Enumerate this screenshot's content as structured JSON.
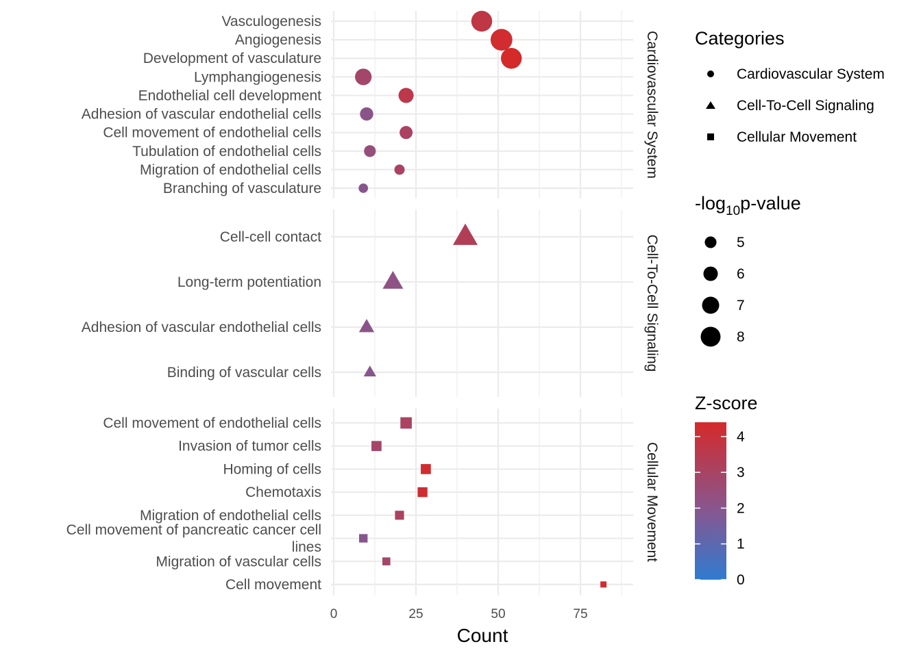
{
  "chart_data": {
    "type": "scatter",
    "xlabel": "Count",
    "xlim": [
      0,
      92
    ],
    "x_ticks": [
      "0",
      "25",
      "50",
      "75"
    ],
    "x_tick_values": [
      0,
      25,
      50,
      75
    ],
    "facets": [
      {
        "name": "Cardiovascular System",
        "shape": "circle",
        "points": [
          {
            "label": "Vasculogenesis",
            "count": 45,
            "log10p": 7.6,
            "zscore": 3.8
          },
          {
            "label": "Angiogenesis",
            "count": 51,
            "log10p": 7.9,
            "zscore": 4.3
          },
          {
            "label": "Development of vasculature",
            "count": 54,
            "log10p": 7.6,
            "zscore": 4.4
          },
          {
            "label": "Lymphangiogenesis",
            "count": 9,
            "log10p": 6.2,
            "zscore": 3.0
          },
          {
            "label": "Endothelial cell development",
            "count": 22,
            "log10p": 5.7,
            "zscore": 3.7
          },
          {
            "label": "Adhesion of vascular endothelial cells",
            "count": 10,
            "log10p": 5.1,
            "zscore": 2.3
          },
          {
            "label": "Cell movement of endothelial cells",
            "count": 22,
            "log10p": 5.0,
            "zscore": 3.2
          },
          {
            "label": "Tubulation of endothelial cells",
            "count": 11,
            "log10p": 4.6,
            "zscore": 2.6
          },
          {
            "label": "Migration of endothelial cells",
            "count": 20,
            "log10p": 4.1,
            "zscore": 3.2
          },
          {
            "label": "Branching of vasculature",
            "count": 9,
            "log10p": 3.8,
            "zscore": 2.2
          }
        ]
      },
      {
        "name": "Cell-To-Cell Signaling",
        "shape": "triangle",
        "points": [
          {
            "label": "Cell-cell contact",
            "count": 40,
            "log10p": 7.8,
            "zscore": 3.4
          },
          {
            "label": "Long-term potentiation",
            "count": 18,
            "log10p": 6.6,
            "zscore": 2.4
          },
          {
            "label": "Adhesion of vascular endothelial cells",
            "count": 10,
            "log10p": 5.1,
            "zscore": 2.3
          },
          {
            "label": "Binding of vascular cells",
            "count": 11,
            "log10p": 4.3,
            "zscore": 2.2
          }
        ]
      },
      {
        "name": "Cellular Movement",
        "shape": "square",
        "points": [
          {
            "label": "Cell movement of endothelial cells",
            "count": 22,
            "log10p": 5.0,
            "zscore": 3.2
          },
          {
            "label": "Invasion of tumor cells",
            "count": 13,
            "log10p": 4.5,
            "zscore": 3.0
          },
          {
            "label": "Homing of cells",
            "count": 28,
            "log10p": 4.5,
            "zscore": 4.3
          },
          {
            "label": "Chemotaxis",
            "count": 27,
            "log10p": 4.4,
            "zscore": 4.2
          },
          {
            "label": "Migration of endothelial cells",
            "count": 20,
            "log10p": 4.1,
            "zscore": 3.2
          },
          {
            "label": "Cell movement of pancreatic cancer cell lines",
            "label_lines": [
              "Cell movement of pancreatic cancer cell",
              "lines"
            ],
            "count": 9,
            "log10p": 3.9,
            "zscore": 2.2
          },
          {
            "label": "Migration of vascular cells",
            "count": 16,
            "log10p": 3.7,
            "zscore": 3.0
          },
          {
            "label": "Cell movement",
            "count": 82,
            "log10p": 3.0,
            "zscore": 4.3
          }
        ]
      }
    ],
    "legend": {
      "placement": "right",
      "shape_title": "Categories",
      "shape_entries": [
        {
          "label": "Cardiovascular System",
          "shape": "circle"
        },
        {
          "label": "Cell-To-Cell Signaling",
          "shape": "triangle"
        },
        {
          "label": "Cellular Movement",
          "shape": "square"
        }
      ],
      "size_title_prefix": "-log",
      "size_title_sub": "10",
      "size_title_suffix": "p-value",
      "size_entries": [
        {
          "label": "5",
          "value": 5
        },
        {
          "label": "6",
          "value": 6
        },
        {
          "label": "7",
          "value": 7
        },
        {
          "label": "8",
          "value": 8
        }
      ],
      "color_title": "Z-score",
      "color_ticks": [
        {
          "label": "0",
          "value": 0
        },
        {
          "label": "1",
          "value": 1
        },
        {
          "label": "2",
          "value": 2
        },
        {
          "label": "3",
          "value": 3
        },
        {
          "label": "4",
          "value": 4
        }
      ],
      "color_range": [
        0,
        4.4
      ],
      "color_low": "#2f7bd1",
      "color_mid": "#88568e",
      "color_high": "#d42a2a"
    },
    "grid": true,
    "facet_strip_position": "right"
  }
}
